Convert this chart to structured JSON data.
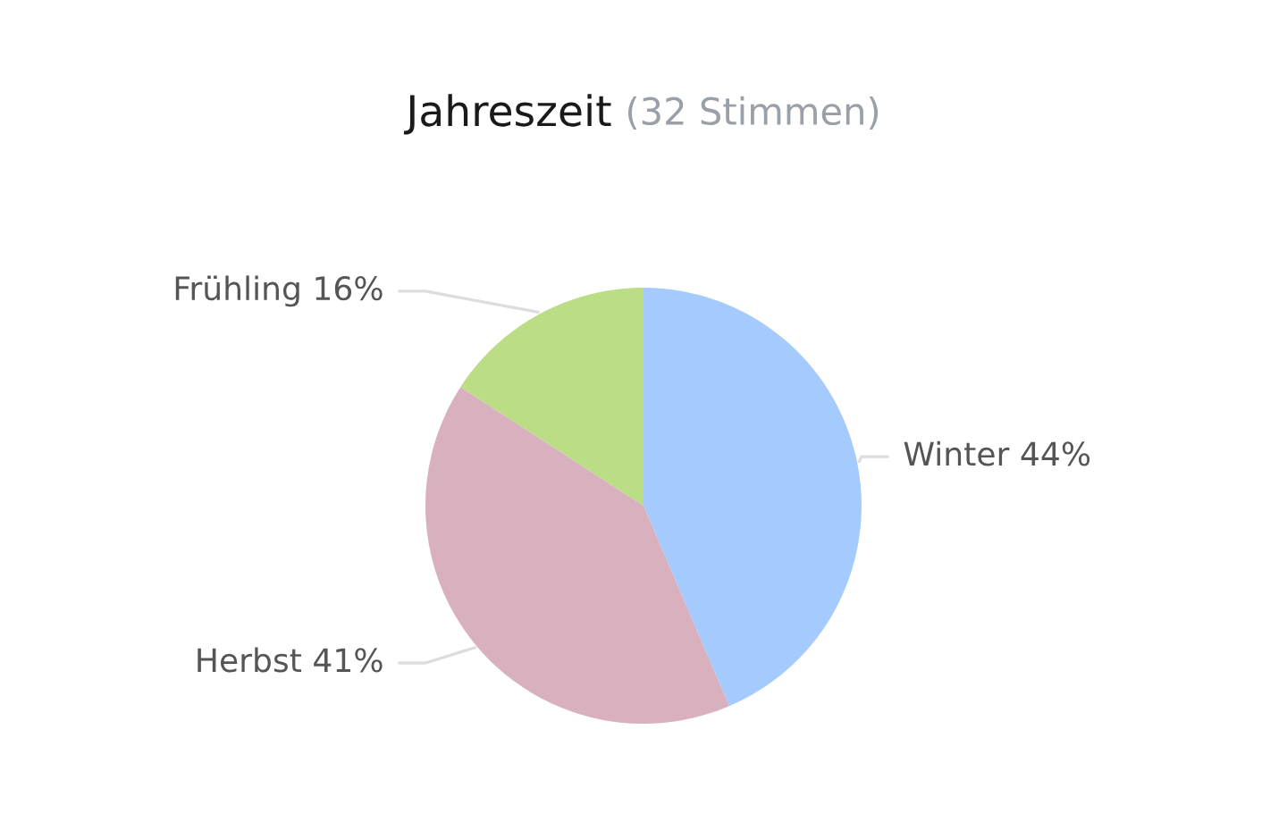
{
  "chart_data": {
    "type": "pie",
    "title": "Jahreszeit",
    "subtitle": "(32 Stimmen)",
    "categories": [
      "Winter",
      "Herbst",
      "Frühling"
    ],
    "values": [
      44,
      41,
      16
    ],
    "colors": [
      "#a4cafe",
      "#d8b0be",
      "#badd85"
    ],
    "value_labels": [
      "44%",
      "41%",
      "16%"
    ]
  }
}
